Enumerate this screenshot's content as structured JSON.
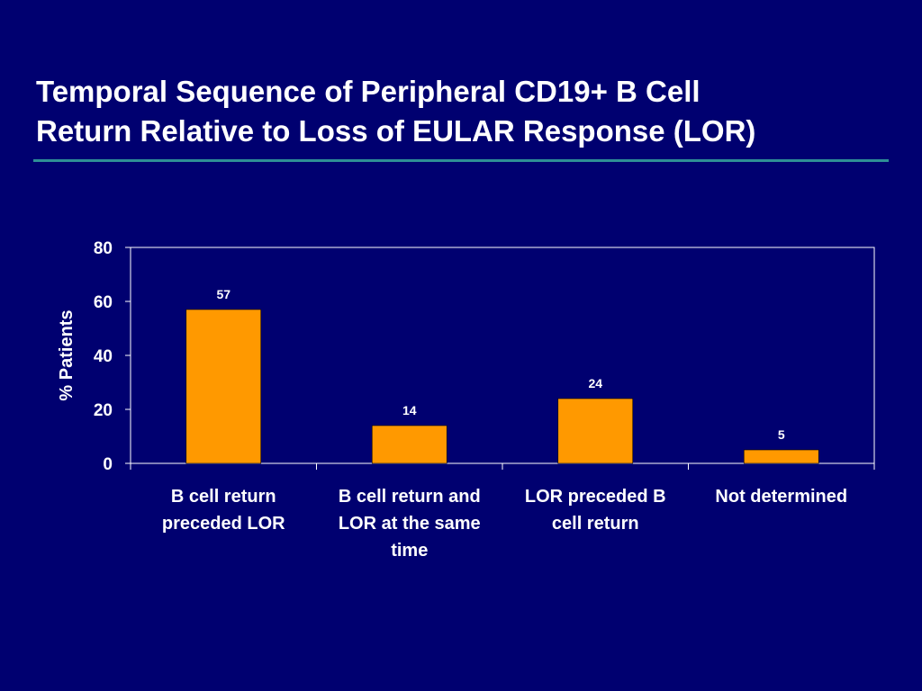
{
  "slide": {
    "title_lines": [
      "Temporal Sequence of Peripheral CD19+ B Cell",
      "Return Relative to Loss of EULAR Response (LOR)"
    ]
  },
  "colors": {
    "background": "#000070",
    "bar": "#ff9900",
    "rule": "#2e8f96",
    "text": "#ffffff"
  },
  "chart_data": {
    "type": "bar",
    "title": "",
    "xlabel": "",
    "ylabel": "% Patients",
    "ylim": [
      0,
      80
    ],
    "yticks": [
      "0",
      "20",
      "40",
      "60",
      "80"
    ],
    "grid": false,
    "categories": [
      [
        "B cell return",
        "preceded LOR"
      ],
      [
        "B cell return and",
        "LOR at the same",
        "time"
      ],
      [
        "LOR preceded B",
        "cell return"
      ],
      [
        "Not determined"
      ]
    ],
    "values": [
      57,
      14,
      24,
      5
    ],
    "data_labels": [
      "57",
      "14",
      "24",
      "5"
    ]
  }
}
